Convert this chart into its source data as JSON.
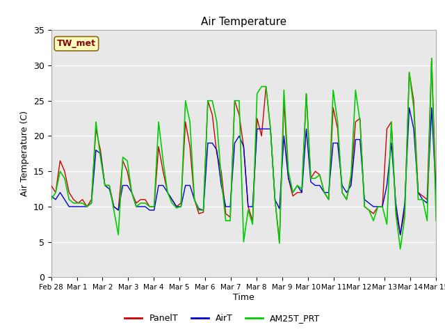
{
  "title": "Air Temperature",
  "ylabel": "Air Temperature (C)",
  "xlabel": "Time",
  "ylim": [
    0,
    35
  ],
  "background_color": "#ffffff",
  "plot_bg_color": "#e8e8e8",
  "annotation_text": "TW_met",
  "annotation_color": "#8B0000",
  "annotation_bg": "#ffffc0",
  "annotation_border": "#8B6914",
  "legend_entries": [
    "PanelT",
    "AirT",
    "AM25T_PRT"
  ],
  "line_colors": [
    "#cc0000",
    "#0000cc",
    "#00cc00"
  ],
  "tick_labels": [
    "Feb 28",
    "Mar 1",
    "Mar 2",
    "Mar 3",
    "Mar 4",
    "Mar 5",
    "Mar 6",
    "Mar 7",
    "Mar 8",
    "Mar 9",
    "Mar 10",
    "Mar 11",
    "Mar 12",
    "Mar 13",
    "Mar 14",
    "Mar 15"
  ],
  "panel_t": [
    13,
    12,
    16.5,
    15,
    12,
    11,
    10.5,
    11,
    10,
    11,
    21,
    18,
    13,
    13,
    10,
    9.5,
    16.5,
    15,
    12,
    10.5,
    11,
    11,
    10,
    10,
    18.5,
    15,
    12,
    11,
    10,
    10.5,
    22,
    18.5,
    11,
    9,
    9.2,
    25,
    23,
    17.5,
    15,
    9,
    8.5,
    25,
    23,
    18.5,
    10,
    8,
    22.5,
    20,
    27,
    21,
    11,
    5,
    25,
    14,
    11.5,
    12,
    12,
    26,
    14,
    15,
    14.5,
    12,
    11,
    24,
    21,
    12,
    11,
    14,
    22,
    22.5,
    10,
    9.5,
    9,
    10,
    10,
    21,
    22,
    9.5,
    6,
    9.5,
    29,
    25,
    12,
    11.5,
    11,
    31,
    11.5
  ],
  "air_t": [
    11.5,
    11,
    12,
    11,
    10,
    10,
    10,
    10,
    10,
    10.5,
    18,
    17.5,
    13,
    12.5,
    10,
    9.5,
    13,
    13,
    12,
    10,
    10,
    10,
    9.5,
    9.5,
    13,
    13,
    12,
    11,
    10,
    10,
    13,
    13,
    11,
    9.7,
    9.5,
    19,
    19,
    18,
    13,
    10,
    10,
    19,
    20,
    18.5,
    10,
    10,
    21,
    21,
    21,
    21,
    11,
    9.7,
    20,
    14,
    12,
    13,
    12,
    21,
    13.5,
    13,
    13,
    12,
    12,
    19,
    19,
    13,
    12,
    13,
    19.5,
    19.5,
    11,
    10.5,
    10,
    10,
    10,
    13,
    19,
    10.5,
    6,
    10.5,
    24,
    21,
    12,
    11,
    10.5,
    24,
    11.5
  ],
  "am25t": [
    11,
    12,
    15,
    14,
    11,
    10.5,
    10.5,
    10.5,
    10,
    10.5,
    22,
    17,
    13,
    13,
    9.5,
    6,
    17,
    16.5,
    12,
    10,
    10.5,
    10.5,
    10,
    10,
    22,
    16.5,
    12,
    10.5,
    9.8,
    10,
    25,
    22,
    11,
    9.5,
    9.5,
    25,
    25,
    22,
    14,
    8,
    8,
    25,
    25,
    5,
    9.5,
    7.5,
    26,
    27,
    27,
    21,
    11,
    4.8,
    26.5,
    15,
    12,
    13,
    12.5,
    26,
    14,
    14,
    14.5,
    12,
    11,
    26.5,
    22,
    12,
    11,
    14.5,
    26.5,
    22,
    10,
    9.5,
    8,
    10,
    10,
    7.5,
    22,
    9,
    4,
    8.5,
    29,
    24,
    11,
    11,
    8,
    31,
    8
  ]
}
